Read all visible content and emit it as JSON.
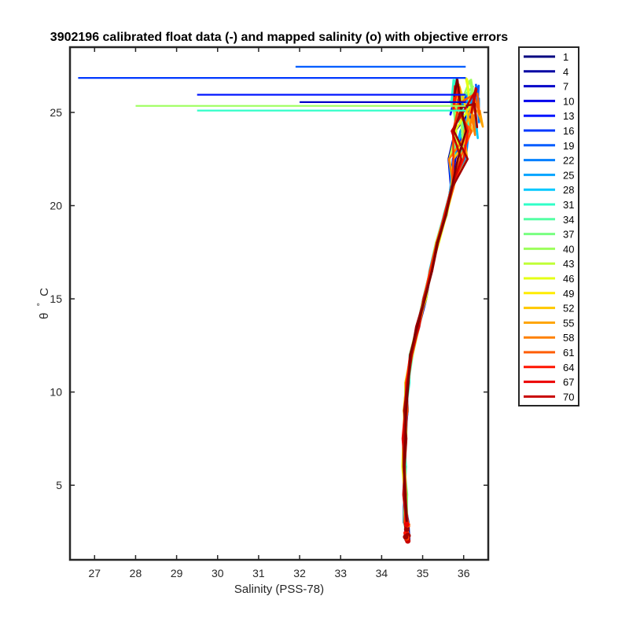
{
  "chart_data": {
    "type": "line",
    "title": "3902196 calibrated float data (-) and mapped salinity (o) with objective errors",
    "xlabel": "Salinity (PSS-78)",
    "ylabel_symbol": "θ",
    "ylabel_unit": "C",
    "xlim": [
      26.4,
      36.6
    ],
    "ylim": [
      1,
      28.5
    ],
    "xticks": [
      "27",
      "28",
      "29",
      "30",
      "31",
      "32",
      "33",
      "34",
      "35",
      "36"
    ],
    "yticks": [
      "5",
      "10",
      "15",
      "20",
      "25"
    ],
    "legend_position": "outside-right",
    "legend": [
      "1",
      "4",
      "7",
      "10",
      "13",
      "16",
      "19",
      "22",
      "25",
      "28",
      "31",
      "34",
      "37",
      "40",
      "43",
      "46",
      "49",
      "52",
      "55",
      "58",
      "61",
      "64",
      "67",
      "70"
    ],
    "colormap": [
      "#000080",
      "#0000a4",
      "#0000c8",
      "#0000ec",
      "#0014ff",
      "#0038ff",
      "#005cff",
      "#0080ff",
      "#00a4ff",
      "#00c8ff",
      "#0cecec",
      "#30ffc8",
      "#54ffa4",
      "#78ff80",
      "#9cff5c",
      "#c0ff38",
      "#e4ff14",
      "#ffec00",
      "#ffc800",
      "#ffa400",
      "#ff8000",
      "#ff5c00",
      "#ff3800",
      "#ff1400",
      "#ec0000",
      "#c80000",
      "#a40000",
      "#800000"
    ],
    "core_profile": [
      [
        34.62,
        2.0
      ],
      [
        34.6,
        3.0
      ],
      [
        34.57,
        4.5
      ],
      [
        34.55,
        6.0
      ],
      [
        34.56,
        7.5
      ],
      [
        34.58,
        9.0
      ],
      [
        34.62,
        10.5
      ],
      [
        34.72,
        12.0
      ],
      [
        34.88,
        13.5
      ],
      [
        35.05,
        15.0
      ],
      [
        35.2,
        16.5
      ],
      [
        35.36,
        18.0
      ],
      [
        35.55,
        19.5
      ],
      [
        35.72,
        21.0
      ],
      [
        35.85,
        22.5
      ],
      [
        35.95,
        24.0
      ],
      [
        36.0,
        25.3
      ]
    ],
    "spikes": [
      {
        "x_min": 26.6,
        "y": 26.85
      },
      {
        "x_min": 29.5,
        "y": 25.95
      },
      {
        "x_min": 31.9,
        "y": 27.45
      },
      {
        "x_min": 32.0,
        "y": 25.55
      },
      {
        "x_min": 28.0,
        "y": 25.35
      },
      {
        "x_min": 29.5,
        "y": 25.1
      }
    ]
  }
}
